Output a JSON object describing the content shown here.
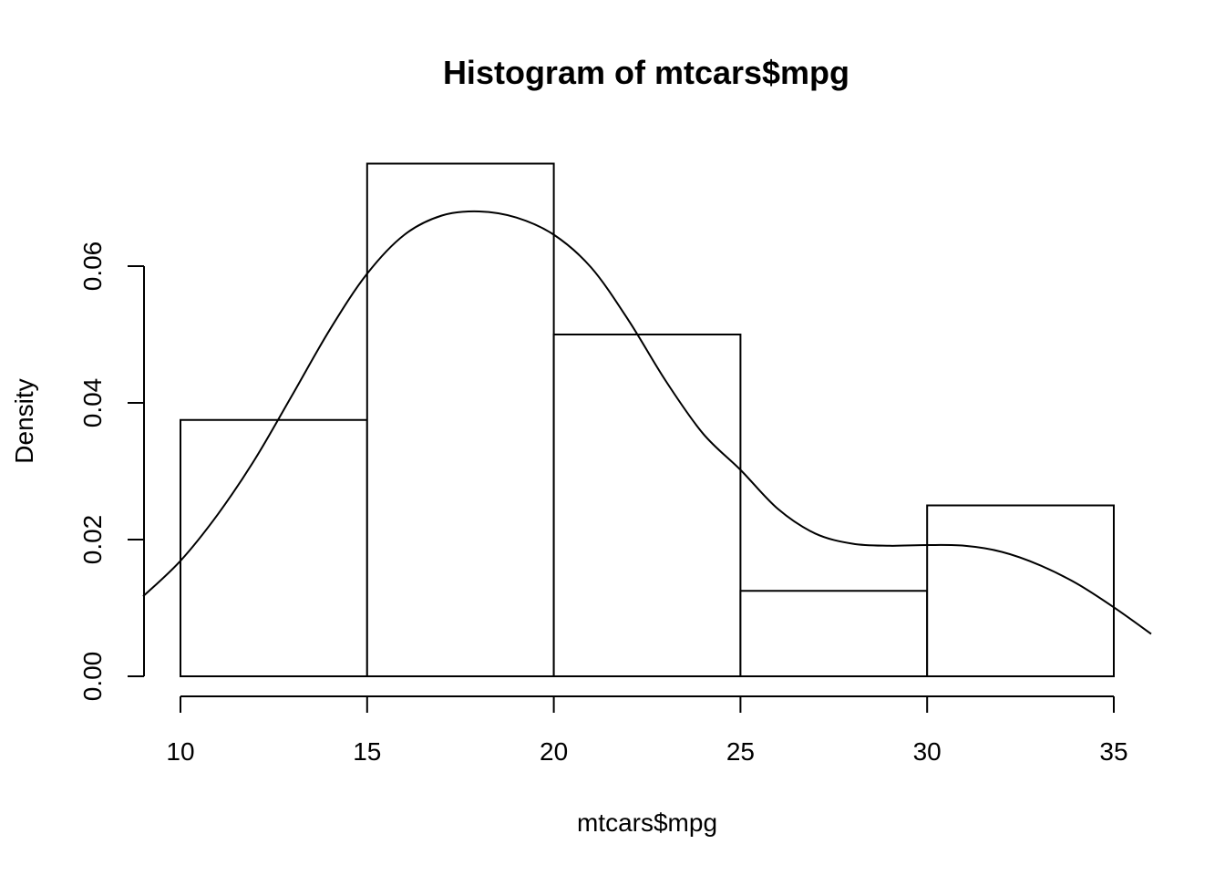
{
  "chart_data": {
    "type": "bar",
    "title": "Histogram of mtcars$mpg",
    "xlabel": "mtcars$mpg",
    "ylabel": "Density",
    "bins": [
      {
        "from": 10,
        "to": 15,
        "density": 0.0375
      },
      {
        "from": 15,
        "to": 20,
        "density": 0.075
      },
      {
        "from": 20,
        "to": 25,
        "density": 0.05
      },
      {
        "from": 25,
        "to": 30,
        "density": 0.0125
      },
      {
        "from": 30,
        "to": 35,
        "density": 0.025
      }
    ],
    "x_ticks": [
      {
        "value": 10,
        "label": "10"
      },
      {
        "value": 15,
        "label": "15"
      },
      {
        "value": 20,
        "label": "20"
      },
      {
        "value": 25,
        "label": "25"
      },
      {
        "value": 30,
        "label": "30"
      },
      {
        "value": 35,
        "label": "35"
      }
    ],
    "y_ticks": [
      {
        "value": 0,
        "label": "0.00"
      },
      {
        "value": 0.02,
        "label": "0.02"
      },
      {
        "value": 0.04,
        "label": "0.04"
      },
      {
        "value": 0.06,
        "label": "0.06"
      }
    ],
    "density_curve": {
      "x": [
        9,
        10,
        11,
        12,
        13,
        14,
        15,
        16,
        17,
        18,
        19,
        20,
        21,
        22,
        23,
        24,
        25,
        26,
        27,
        28,
        29,
        30,
        31,
        32,
        33,
        34,
        35,
        36
      ],
      "y": [
        0.0117,
        0.0169,
        0.0237,
        0.0318,
        0.0412,
        0.0507,
        0.0589,
        0.0646,
        0.0674,
        0.068,
        0.0671,
        0.0646,
        0.0598,
        0.0521,
        0.0432,
        0.0355,
        0.0302,
        0.0245,
        0.0209,
        0.0194,
        0.0191,
        0.0192,
        0.0191,
        0.0182,
        0.0163,
        0.0136,
        0.0101,
        0.0062
      ]
    },
    "xlim": [
      9,
      36
    ],
    "ylim": [
      0,
      0.075
    ],
    "grid": false
  }
}
